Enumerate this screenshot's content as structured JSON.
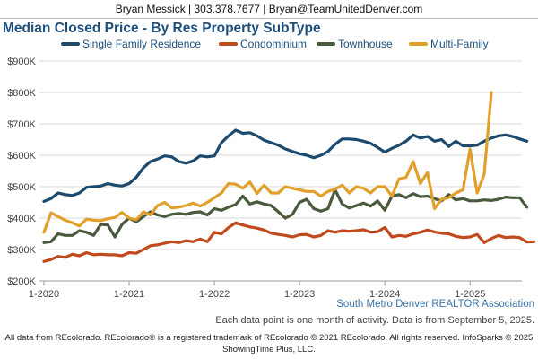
{
  "header": {
    "contact": "Bryan Messick | 303.378.7677 | Bryan@TeamUnitedDenver.com"
  },
  "source": "South Metro Denver REALTOR Association",
  "note": "Each data point is one month of activity. Data is from September 5, 2025.",
  "footer": {
    "line1": "All data from REcolorado. REcolorado® is a registered trademark of REcolorado © 2021 REcolorado. All rights reserved. InfoSparks © 2025",
    "line2": "ShowingTime Plus, LLC."
  },
  "chart_data": {
    "type": "line",
    "title": "Median Closed Price - By Res Property SubType",
    "xlabel": "",
    "ylabel": "",
    "ylim": [
      200000,
      900000
    ],
    "y_ticks": [
      200000,
      300000,
      400000,
      500000,
      600000,
      700000,
      800000,
      900000
    ],
    "y_tick_labels": [
      "$200K",
      "$300K",
      "$400K",
      "$500K",
      "$600K",
      "$700K",
      "$800K",
      "$900K"
    ],
    "x_start": "2020-01",
    "x_ticks": [
      "1-2020",
      "1-2021",
      "1-2022",
      "1-2023",
      "1-2024",
      "1-2025"
    ],
    "grid": true,
    "legend": "top",
    "series": [
      {
        "name": "Single Family Residence",
        "color": "#1b4a6e",
        "values": [
          453000,
          462000,
          480000,
          475000,
          472000,
          480000,
          498000,
          500000,
          502000,
          510000,
          505000,
          502000,
          510000,
          530000,
          560000,
          580000,
          588000,
          598000,
          595000,
          580000,
          575000,
          582000,
          598000,
          595000,
          598000,
          640000,
          662000,
          680000,
          670000,
          672000,
          662000,
          648000,
          640000,
          632000,
          620000,
          612000,
          605000,
          600000,
          592000,
          600000,
          612000,
          635000,
          652000,
          652000,
          650000,
          645000,
          638000,
          625000,
          610000,
          622000,
          632000,
          645000,
          665000,
          655000,
          660000,
          645000,
          650000,
          628000,
          645000,
          630000,
          630000,
          632000,
          645000,
          655000,
          662000,
          665000,
          660000,
          652000,
          645000
        ]
      },
      {
        "name": "Condominium",
        "color": "#c04a1c",
        "values": [
          262000,
          268000,
          278000,
          275000,
          285000,
          280000,
          290000,
          283000,
          285000,
          283000,
          283000,
          280000,
          290000,
          288000,
          300000,
          312000,
          315000,
          320000,
          325000,
          322000,
          328000,
          325000,
          333000,
          325000,
          355000,
          350000,
          370000,
          385000,
          378000,
          372000,
          368000,
          362000,
          352000,
          348000,
          345000,
          340000,
          347000,
          348000,
          340000,
          345000,
          360000,
          355000,
          360000,
          358000,
          360000,
          363000,
          355000,
          357000,
          370000,
          340000,
          345000,
          342000,
          350000,
          355000,
          362000,
          356000,
          352000,
          350000,
          342000,
          338000,
          340000,
          348000,
          322000,
          335000,
          345000,
          338000,
          340000,
          338000,
          324000,
          325000
        ]
      },
      {
        "name": "Townhouse",
        "color": "#4a5a3c",
        "values": [
          322000,
          325000,
          350000,
          345000,
          345000,
          360000,
          355000,
          345000,
          380000,
          378000,
          340000,
          380000,
          400000,
          388000,
          405000,
          420000,
          410000,
          405000,
          412000,
          415000,
          412000,
          418000,
          420000,
          410000,
          430000,
          425000,
          435000,
          443000,
          470000,
          445000,
          452000,
          445000,
          440000,
          420000,
          400000,
          412000,
          450000,
          460000,
          430000,
          422000,
          430000,
          490000,
          445000,
          432000,
          440000,
          448000,
          438000,
          455000,
          425000,
          470000,
          475000,
          465000,
          478000,
          468000,
          470000,
          462000,
          455000,
          475000,
          458000,
          462000,
          455000,
          455000,
          458000,
          456000,
          460000,
          467000,
          465000,
          465000,
          435000
        ]
      },
      {
        "name": "Multi-Family",
        "color": "#e0a02b",
        "values": [
          355000,
          417000,
          405000,
          393000,
          385000,
          375000,
          397000,
          393000,
          392000,
          398000,
          402000,
          418000,
          400000,
          395000,
          420000,
          410000,
          440000,
          450000,
          432000,
          435000,
          440000,
          448000,
          438000,
          450000,
          465000,
          480000,
          510000,
          508000,
          495000,
          515000,
          478000,
          505000,
          480000,
          480000,
          500000,
          495000,
          490000,
          485000,
          485000,
          470000,
          485000,
          492000,
          505000,
          480000,
          500000,
          495000,
          480000,
          500000,
          500000,
          470000,
          525000,
          530000,
          580000,
          510000,
          545000,
          430000,
          460000,
          465000,
          480000,
          490000,
          620000,
          480000,
          540000,
          800000
        ]
      }
    ]
  }
}
